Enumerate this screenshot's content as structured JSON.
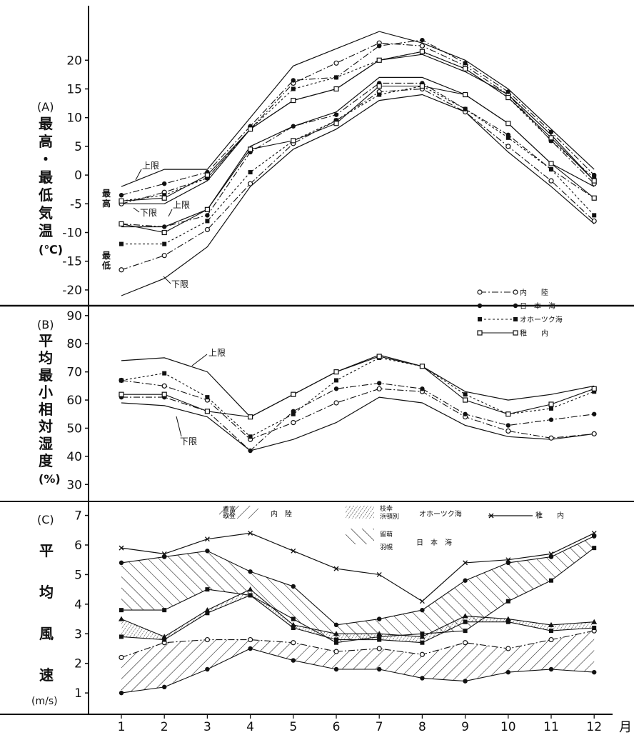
{
  "chart_data": [
    {
      "type": "line",
      "panel_label": "(A)",
      "ylabel_chars": [
        "最",
        "高",
        "・",
        "最",
        "低",
        "気",
        "温",
        "(℃)"
      ],
      "ylim": [
        -22,
        27
      ],
      "yticks": [
        20,
        15,
        10,
        5,
        0,
        -5,
        -10,
        -15,
        -20
      ],
      "x": [
        1,
        2,
        3,
        4,
        5,
        6,
        7,
        8,
        9,
        10,
        11,
        12
      ],
      "annotations": {
        "upper_max": "上限",
        "lower_max": "下限",
        "upper_min": "上限",
        "lower_min": "下限",
        "max_label": [
          "最",
          "高"
        ],
        "min_label": [
          "最",
          "低"
        ]
      },
      "legend": [
        {
          "label": "内　　陸",
          "style": "dashdot",
          "marker": "open-circle"
        },
        {
          "label": "日　本　海",
          "style": "dashdot",
          "marker": "filled-circle"
        },
        {
          "label": "オホーツク海",
          "style": "dotted",
          "marker": "filled-square"
        },
        {
          "label": "稚　　内",
          "style": "solid",
          "marker": "open-square"
        }
      ],
      "envelope": {
        "max_upper": [
          -2,
          1,
          1,
          10,
          19,
          22,
          25,
          23,
          20,
          15,
          8,
          1
        ],
        "max_lower": [
          -5,
          -5,
          -1,
          8,
          13,
          15,
          20,
          21,
          18,
          14,
          7,
          -1
        ],
        "min_upper": [
          -9,
          -9,
          -6,
          5,
          8.5,
          11,
          17,
          17,
          14,
          9,
          2,
          -2
        ],
        "min_lower": [
          -21,
          -18,
          -12.5,
          -2,
          4.5,
          8,
          13,
          14,
          11,
          4,
          -2,
          -8.5
        ]
      },
      "series": [
        {
          "name": "内　　陸",
          "kind": "max",
          "values": [
            -5,
            -3,
            -0.5,
            8,
            16,
            19.5,
            23,
            22.5,
            19,
            14,
            6,
            -1.5
          ]
        },
        {
          "name": "日　本　海",
          "kind": "max",
          "values": [
            -3.5,
            -1.5,
            0.5,
            8.5,
            16.5,
            17,
            22.5,
            23.5,
            19.5,
            14.5,
            7.5,
            0
          ]
        },
        {
          "name": "オホーツク海",
          "kind": "max",
          "values": [
            -4.5,
            -3.5,
            -0.5,
            8,
            15,
            17,
            20,
            21.5,
            18.5,
            13.5,
            6,
            -0.5
          ]
        },
        {
          "name": "稚　　内",
          "kind": "max",
          "values": [
            -4.5,
            -4,
            0,
            8,
            13,
            15,
            20,
            21.5,
            18.5,
            13.5,
            6.5,
            -1
          ]
        },
        {
          "name": "内　　陸",
          "kind": "min",
          "values": [
            -16.5,
            -14,
            -9.5,
            -1.5,
            5.5,
            9.5,
            14.5,
            15,
            11,
            5,
            -1,
            -8
          ]
        },
        {
          "name": "日　本　海",
          "kind": "min",
          "values": [
            -8.5,
            -9,
            -7,
            4,
            8.5,
            10.5,
            16,
            16,
            11.5,
            7,
            1,
            -4
          ]
        },
        {
          "name": "オホーツク海",
          "kind": "min",
          "values": [
            -12,
            -12,
            -8,
            0.5,
            6,
            9.5,
            14,
            15.5,
            11.5,
            6.5,
            1,
            -7
          ]
        },
        {
          "name": "稚　　内",
          "kind": "min",
          "values": [
            -8.5,
            -10,
            -6,
            4.5,
            6,
            9,
            15.5,
            15.5,
            14,
            9,
            2,
            -4
          ]
        }
      ]
    },
    {
      "type": "line",
      "panel_label": "(B)",
      "ylabel_chars": [
        "平",
        "均",
        "最",
        "小",
        "相",
        "対",
        "湿",
        "度",
        "(%)"
      ],
      "ylim": [
        25,
        93
      ],
      "yticks": [
        90,
        80,
        70,
        60,
        50,
        40,
        30
      ],
      "x": [
        1,
        2,
        3,
        4,
        5,
        6,
        7,
        8,
        9,
        10,
        11,
        12
      ],
      "annotations": {
        "upper": "上限",
        "lower": "下限"
      },
      "envelope": {
        "upper": [
          74,
          75,
          70,
          54,
          62,
          70,
          76,
          72,
          63,
          60,
          62,
          65
        ],
        "lower": [
          59,
          58,
          54,
          42,
          46,
          52,
          61,
          59,
          51,
          47,
          46,
          48
        ]
      },
      "series": [
        {
          "name": "内　　陸",
          "values": [
            67,
            65,
            60,
            46,
            52,
            59,
            64,
            63,
            54,
            49,
            46.5,
            48
          ]
        },
        {
          "name": "日　本　海",
          "values": [
            61,
            61,
            56,
            42,
            56,
            64,
            66,
            64,
            55,
            51,
            53,
            55
          ]
        },
        {
          "name": "オホーツク海",
          "values": [
            67,
            69.5,
            61,
            47,
            55,
            67,
            75,
            72,
            62,
            55,
            57,
            63
          ]
        },
        {
          "name": "稚　　内",
          "values": [
            62,
            62,
            56,
            54,
            62,
            70,
            75.5,
            72,
            60,
            55,
            58.5,
            64
          ]
        }
      ]
    },
    {
      "type": "area",
      "panel_label": "(C)",
      "ylabel_chars": [
        "平",
        "均",
        "風",
        "速"
      ],
      "yunit": "(m/s)",
      "ylim": [
        0.4,
        7.4
      ],
      "yticks": [
        7,
        6,
        5,
        4,
        3,
        2,
        1
      ],
      "x": [
        1,
        2,
        3,
        4,
        5,
        6,
        7,
        8,
        9,
        10,
        11,
        12
      ],
      "xticks": [
        "1",
        "2",
        "3",
        "4",
        "5",
        "6",
        "7",
        "8",
        "9",
        "10",
        "11",
        "12"
      ],
      "xunit": "月",
      "legend": [
        {
          "stations": [
            "豊富",
            "歌登"
          ],
          "region": "内　陸"
        },
        {
          "stations": [
            "枝幸",
            "浜頓別"
          ],
          "region": "オホーツク海"
        },
        {
          "stations": [
            "稚",
            "内"
          ],
          "region": ""
        },
        {
          "stations": [
            "留萌",
            "羽幌"
          ],
          "region": "日　本　海"
        }
      ],
      "wakkanai_label": "稚　　内",
      "bands": [
        {
          "region": "内　陸",
          "upper": [
            2.2,
            2.7,
            2.8,
            2.8,
            2.7,
            2.4,
            2.5,
            2.3,
            2.7,
            2.5,
            2.8,
            3.1
          ],
          "lower": [
            1.0,
            1.2,
            1.8,
            2.5,
            2.1,
            1.8,
            1.8,
            1.5,
            1.4,
            1.7,
            1.8,
            1.7
          ]
        },
        {
          "region": "日　本　海",
          "upper": [
            5.4,
            5.6,
            5.8,
            5.1,
            4.6,
            3.3,
            3.5,
            3.8,
            4.8,
            5.4,
            5.6,
            6.3
          ],
          "lower": [
            3.8,
            3.8,
            4.5,
            4.3,
            3.5,
            2.7,
            2.9,
            3.0,
            3.1,
            4.1,
            4.8,
            5.9
          ]
        },
        {
          "region": "オホーツク海",
          "upper": [
            3.5,
            2.9,
            3.8,
            4.5,
            3.3,
            3.0,
            3.0,
            2.9,
            3.6,
            3.5,
            3.3,
            3.4
          ],
          "lower": [
            2.9,
            2.8,
            3.7,
            4.3,
            3.2,
            2.8,
            2.8,
            2.7,
            3.4,
            3.4,
            3.1,
            3.2
          ]
        }
      ],
      "series": [
        {
          "name": "稚　　内",
          "values": [
            5.9,
            5.7,
            6.2,
            6.4,
            5.8,
            5.2,
            5.0,
            4.1,
            5.4,
            5.5,
            5.7,
            6.4
          ]
        }
      ]
    }
  ]
}
